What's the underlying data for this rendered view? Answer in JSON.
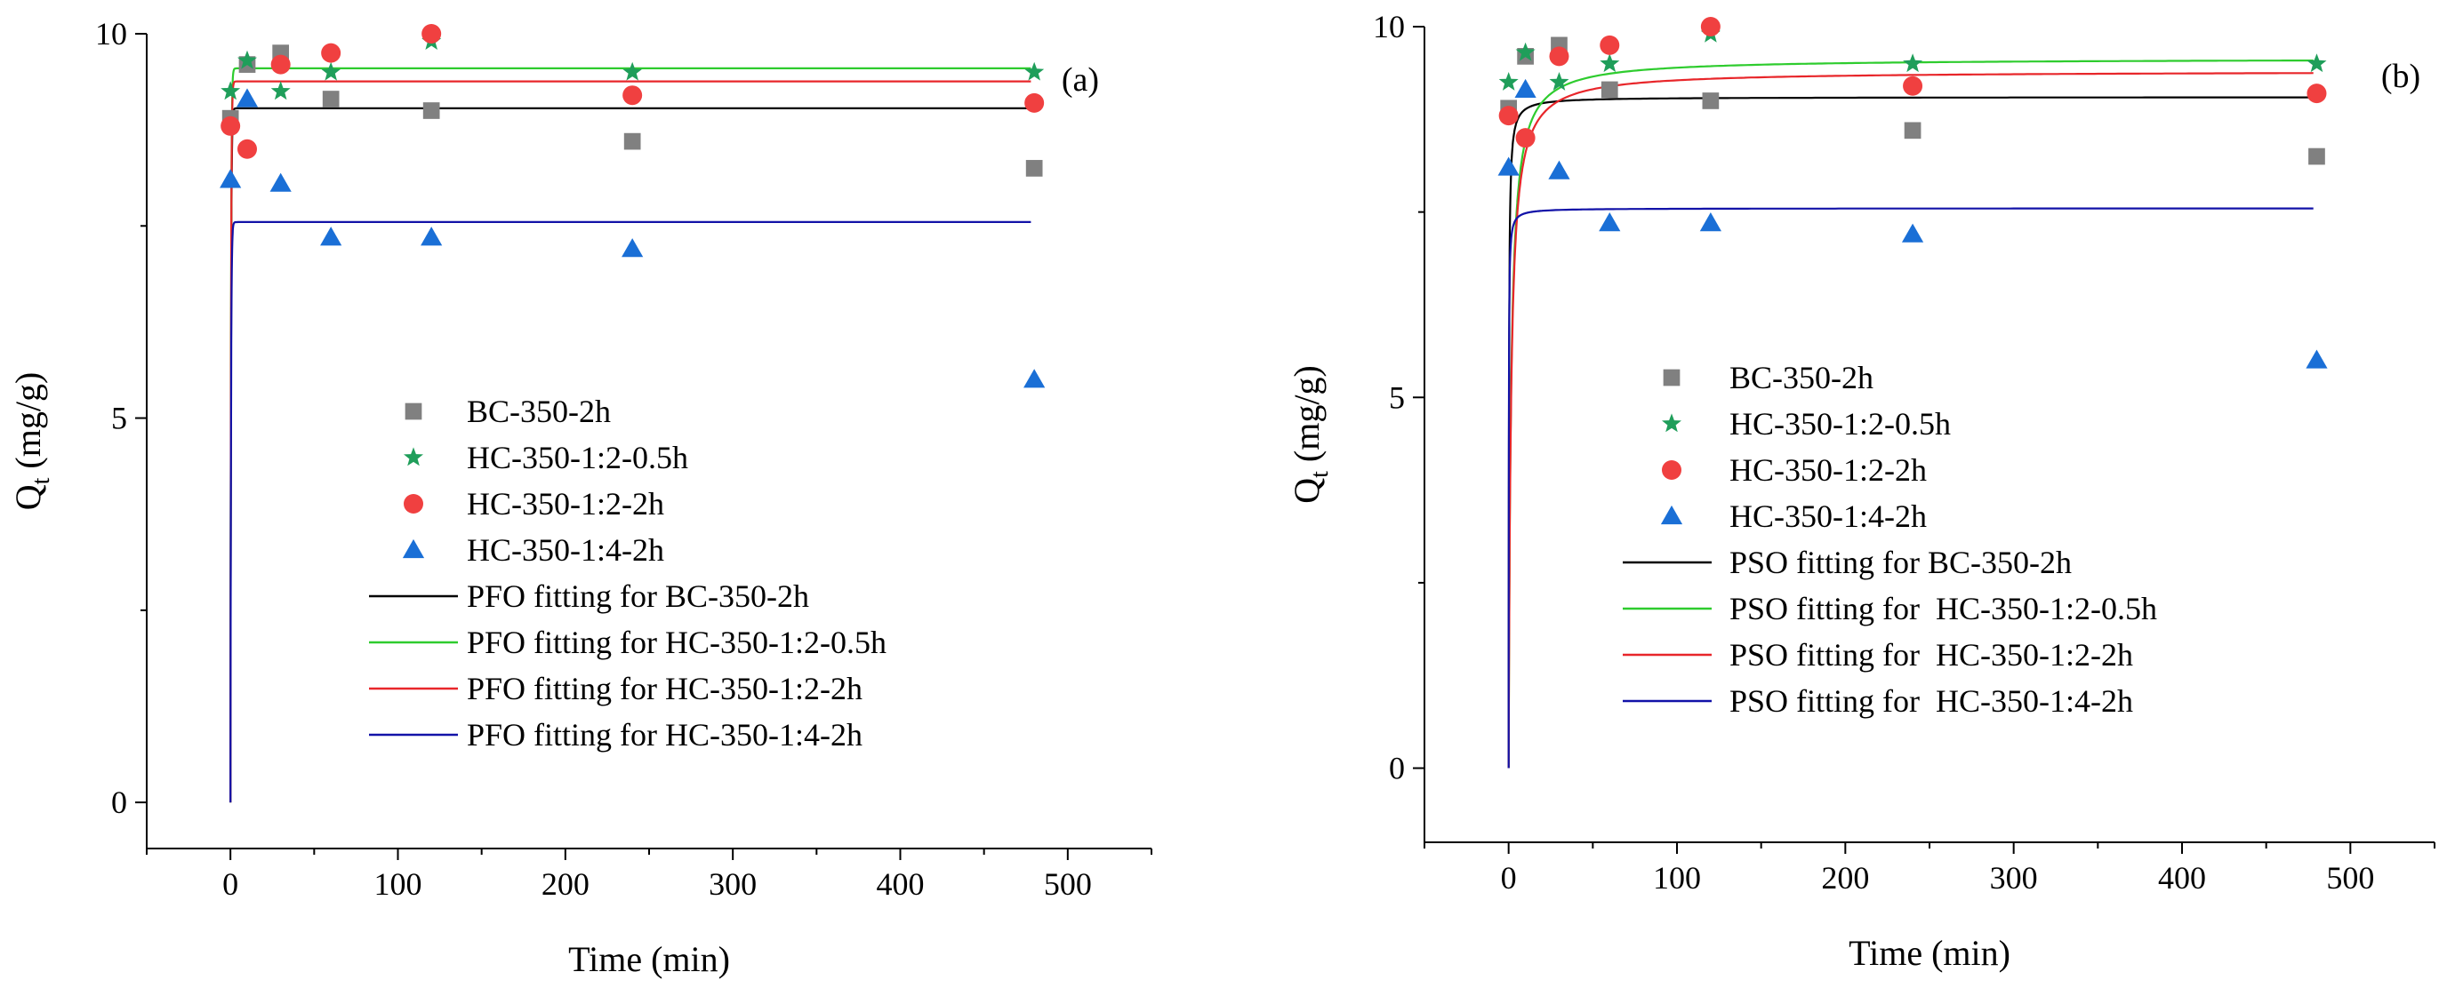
{
  "chart_data": [
    {
      "type": "scatter",
      "panel_label": "(a)",
      "xlabel": "Time (min)",
      "ylabel_main": "Q",
      "ylabel_sub": "t",
      "ylabel_unit": " (mg/g)",
      "xlim": [
        -50,
        550
      ],
      "ylim": [
        -0.6,
        10
      ],
      "xticks": [
        0,
        100,
        200,
        300,
        400,
        500
      ],
      "yticks": [
        0,
        5,
        10
      ],
      "legend_position": "center",
      "series": [
        {
          "name": "BC-350-2h",
          "kind": "scatter",
          "marker": "square",
          "color": "#808080",
          "x": [
            0,
            10,
            30,
            60,
            120,
            240,
            480
          ],
          "y": [
            8.9,
            9.6,
            9.75,
            9.15,
            9.0,
            8.6,
            8.25
          ]
        },
        {
          "name": "HC-350-1:2-0.5h",
          "kind": "scatter",
          "marker": "star",
          "color": "#1f9e5a",
          "x": [
            0,
            10,
            30,
            60,
            120,
            240,
            480
          ],
          "y": [
            9.25,
            9.65,
            9.25,
            9.5,
            9.9,
            9.5,
            9.5
          ]
        },
        {
          "name": "HC-350-1:2-2h",
          "kind": "scatter",
          "marker": "circle",
          "color": "#f04040",
          "x": [
            0,
            10,
            30,
            60,
            120,
            240,
            480
          ],
          "y": [
            8.8,
            8.5,
            9.6,
            9.75,
            10.0,
            9.2,
            9.1
          ]
        },
        {
          "name": "HC-350-1:4-2h",
          "kind": "scatter",
          "marker": "triangle",
          "color": "#1a6fd6",
          "x": [
            0,
            10,
            30,
            60,
            120,
            240,
            480
          ],
          "y": [
            8.1,
            9.15,
            8.05,
            7.35,
            7.35,
            7.2,
            5.5
          ]
        },
        {
          "name": "PFO fitting for BC-350-2h",
          "kind": "line",
          "model": "PFO",
          "color": "#000000",
          "qe": 9.03,
          "k": 3.0
        },
        {
          "name": "PFO fitting for HC-350-1:2-0.5h",
          "kind": "line",
          "model": "PFO",
          "color": "#2ecc2e",
          "qe": 9.55,
          "k": 3.0
        },
        {
          "name": "PFO fitting for HC-350-1:2-2h",
          "kind": "line",
          "model": "PFO",
          "color": "#e8262a",
          "qe": 9.38,
          "k": 3.0
        },
        {
          "name": "PFO fitting for HC-350-1:4-2h",
          "kind": "line",
          "model": "PFO",
          "color": "#1212a8",
          "qe": 7.55,
          "k": 3.0
        }
      ]
    },
    {
      "type": "scatter",
      "panel_label": "(b)",
      "xlabel": "Time (min)",
      "ylabel_main": "Q",
      "ylabel_sub": "t",
      "ylabel_unit": " (mg/g)",
      "xlim": [
        -50,
        550
      ],
      "ylim": [
        -1.0,
        10
      ],
      "xticks": [
        0,
        100,
        200,
        300,
        400,
        500
      ],
      "yticks": [
        0,
        5,
        10
      ],
      "legend_position": "center",
      "series": [
        {
          "name": "BC-350-2h",
          "kind": "scatter",
          "marker": "square",
          "color": "#808080",
          "x": [
            0,
            10,
            30,
            60,
            120,
            240,
            480
          ],
          "y": [
            8.9,
            9.6,
            9.75,
            9.15,
            9.0,
            8.6,
            8.25
          ]
        },
        {
          "name": "HC-350-1:2-0.5h",
          "kind": "scatter",
          "marker": "star",
          "color": "#1f9e5a",
          "x": [
            0,
            10,
            30,
            60,
            120,
            240,
            480
          ],
          "y": [
            9.25,
            9.65,
            9.25,
            9.5,
            9.9,
            9.5,
            9.5
          ]
        },
        {
          "name": "HC-350-1:2-2h",
          "kind": "scatter",
          "marker": "circle",
          "color": "#f04040",
          "x": [
            0,
            10,
            30,
            60,
            120,
            240,
            480
          ],
          "y": [
            8.8,
            8.5,
            9.6,
            9.75,
            10.0,
            9.2,
            9.1
          ]
        },
        {
          "name": "HC-350-1:4-2h",
          "kind": "scatter",
          "marker": "triangle",
          "color": "#1a6fd6",
          "x": [
            0,
            10,
            30,
            60,
            120,
            240,
            480
          ],
          "y": [
            8.1,
            9.15,
            8.05,
            7.35,
            7.35,
            7.2,
            5.5
          ]
        },
        {
          "name": "PSO fitting for BC-350-2h",
          "kind": "line",
          "model": "PSO",
          "color": "#000000",
          "qe": 9.05,
          "k": 0.6
        },
        {
          "name": "PSO fitting for  HC-350-1:2-0.5h",
          "kind": "line",
          "model": "PSO",
          "color": "#2ecc2e",
          "qe": 9.57,
          "k": 0.08
        },
        {
          "name": "PSO fitting for  HC-350-1:2-2h",
          "kind": "line",
          "model": "PSO",
          "color": "#e8262a",
          "qe": 9.4,
          "k": 0.08
        },
        {
          "name": "PSO fitting for  HC-350-1:4-2h",
          "kind": "line",
          "model": "PSO",
          "color": "#1212a8",
          "qe": 7.55,
          "k": 1.5
        }
      ]
    }
  ]
}
